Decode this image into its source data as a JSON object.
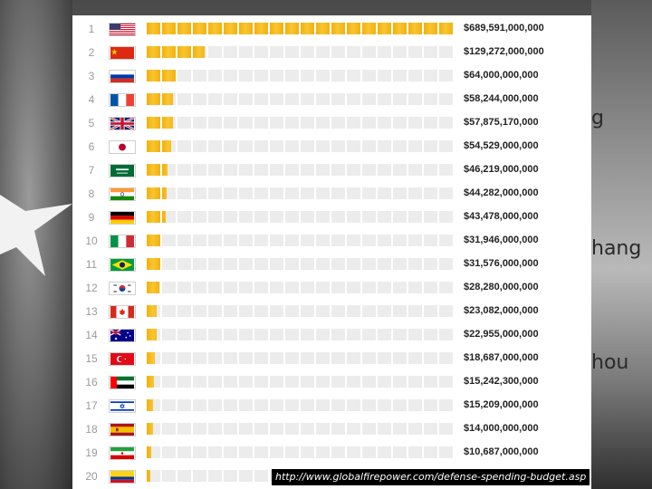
{
  "chart_data": {
    "type": "bar",
    "orientation": "horizontal",
    "ranks": [
      "1",
      "2",
      "3",
      "4",
      "5",
      "6",
      "7",
      "8",
      "9",
      "10",
      "11",
      "12",
      "13",
      "14",
      "15",
      "16",
      "17",
      "18",
      "19",
      "20"
    ],
    "flags": [
      "flag-usa-icon",
      "flag-china-icon",
      "flag-russia-icon",
      "flag-france-icon",
      "flag-uk-icon",
      "flag-japan-icon",
      "flag-saudi-arabia-icon",
      "flag-india-icon",
      "flag-germany-icon",
      "flag-italy-icon",
      "flag-brazil-icon",
      "flag-south-korea-icon",
      "flag-canada-icon",
      "flag-australia-icon",
      "flag-turkey-icon",
      "flag-uae-icon",
      "flag-israel-icon",
      "flag-spain-icon",
      "flag-iran-icon",
      "flag-colombia-icon"
    ],
    "values": [
      689591000000,
      129272000000,
      64000000000,
      58244000000,
      57875170000,
      54529000000,
      46219000000,
      44282000000,
      43478000000,
      31946000000,
      31576000000,
      28280000000,
      23082000000,
      22955000000,
      18687000000,
      15242300000,
      15209000000,
      14000000000,
      10687000000,
      null
    ],
    "value_labels": [
      "$689,591,000,000",
      "$129,272,000,000",
      "$64,000,000,000",
      "$58,244,000,000",
      "$57,875,170,000",
      "$54,529,000,000",
      "$46,219,000,000",
      "$44,282,000,000",
      "$43,478,000,000",
      "$31,946,000,000",
      "$31,576,000,000",
      "$28,280,000,000",
      "$23,082,000,000",
      "$22,955,000,000",
      "$18,687,000,000",
      "$15,242,300,000",
      "$15,209,000,000",
      "$14,000,000,000",
      "$10,687,000,000",
      ""
    ],
    "xlim": [
      0,
      689591000000
    ]
  },
  "source_url": "http://www.globalfirepower.com/defense-spending-budget.asp",
  "background_words": [
    "g",
    "hang",
    "hou"
  ],
  "colors": {
    "bar": "#f2b10e",
    "track": "#ececec",
    "panel": "#ffffff"
  }
}
